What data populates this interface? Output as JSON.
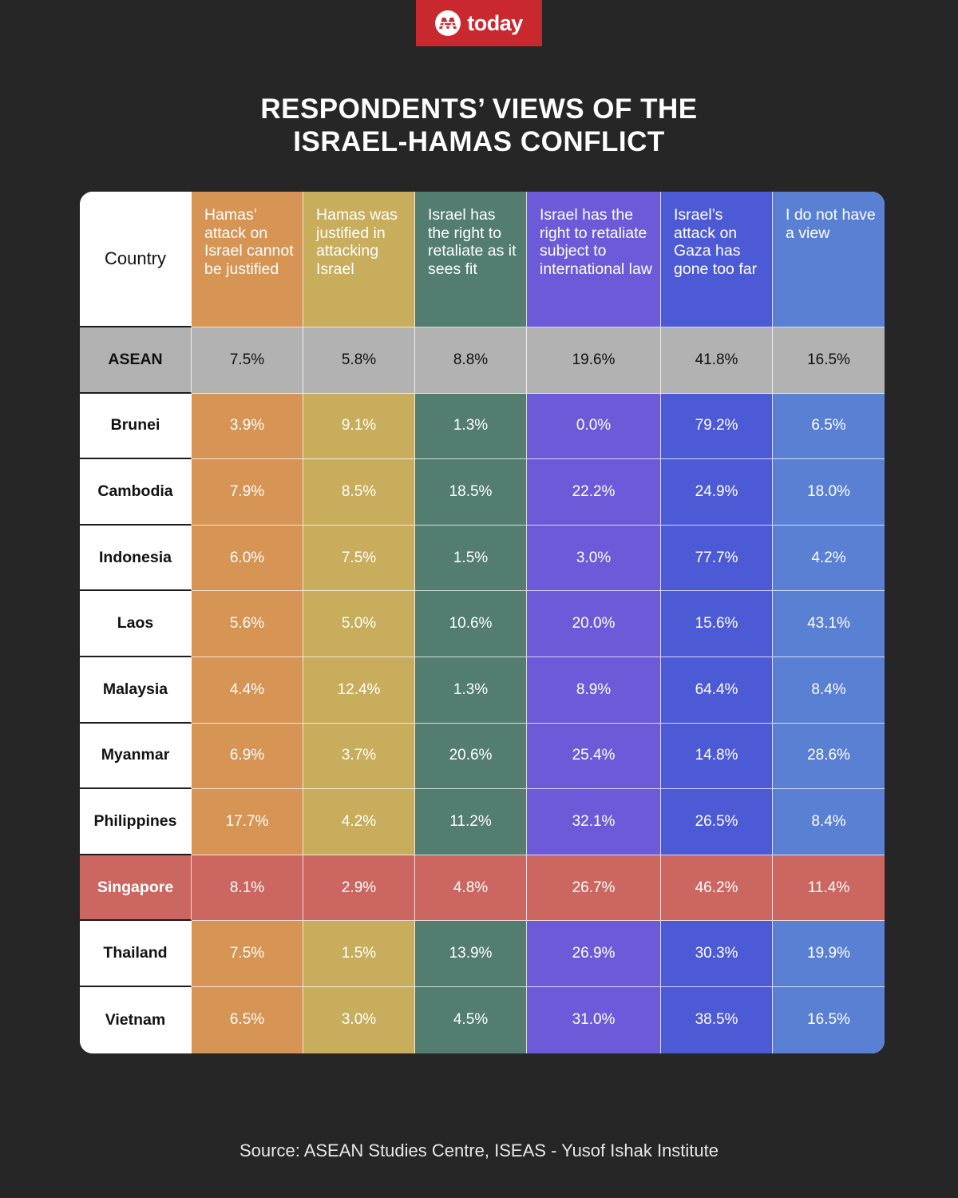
{
  "brand": {
    "logo_text": "today",
    "logo_color": "#c8282e"
  },
  "title_lines": [
    "RESPONDENTS’ VIEWS OF THE",
    "ISRAEL-HAMAS CONFLICT"
  ],
  "source": "Source: ASEAN Studies Centre, ISEAS - Yusof Ishak Institute",
  "chart_data": {
    "type": "table",
    "title": "RESPONDENTS’ VIEWS OF THE ISRAEL-HAMAS CONFLICT",
    "row_header_label": "Country",
    "columns": [
      {
        "label": "Hamas’ attack on Israel cannot be justified",
        "color": "#d69455"
      },
      {
        "label": "Hamas was justified in attacking Israel",
        "color": "#c8ad5d"
      },
      {
        "label": "Israel has the right to retaliate as it sees fit",
        "color": "#547d71"
      },
      {
        "label": "Israel has the right to retaliate subject to international law",
        "color": "#6d5ad8"
      },
      {
        "label": "Israel’s attack on Gaza has gone too far",
        "color": "#4d5ad6"
      },
      {
        "label": "I do not have a view",
        "color": "#5a80d4"
      }
    ],
    "rows": [
      {
        "country": "ASEAN",
        "highlight": "aggregate",
        "values": [
          "7.5%",
          "5.8%",
          "8.8%",
          "19.6%",
          "41.8%",
          "16.5%"
        ]
      },
      {
        "country": "Brunei",
        "values": [
          "3.9%",
          "9.1%",
          "1.3%",
          "0.0%",
          "79.2%",
          "6.5%"
        ]
      },
      {
        "country": "Cambodia",
        "values": [
          "7.9%",
          "8.5%",
          "18.5%",
          "22.2%",
          "24.9%",
          "18.0%"
        ]
      },
      {
        "country": "Indonesia",
        "values": [
          "6.0%",
          "7.5%",
          "1.5%",
          "3.0%",
          "77.7%",
          "4.2%"
        ]
      },
      {
        "country": "Laos",
        "values": [
          "5.6%",
          "5.0%",
          "10.6%",
          "20.0%",
          "15.6%",
          "43.1%"
        ]
      },
      {
        "country": "Malaysia",
        "values": [
          "4.4%",
          "12.4%",
          "1.3%",
          "8.9%",
          "64.4%",
          "8.4%"
        ]
      },
      {
        "country": "Myanmar",
        "values": [
          "6.9%",
          "3.7%",
          "20.6%",
          "25.4%",
          "14.8%",
          "28.6%"
        ]
      },
      {
        "country": "Philippines",
        "values": [
          "17.7%",
          "4.2%",
          "11.2%",
          "32.1%",
          "26.5%",
          "8.4%"
        ]
      },
      {
        "country": "Singapore",
        "highlight": "featured",
        "values": [
          "8.1%",
          "2.9%",
          "4.8%",
          "26.7%",
          "46.2%",
          "11.4%"
        ]
      },
      {
        "country": "Thailand",
        "values": [
          "7.5%",
          "1.5%",
          "13.9%",
          "26.9%",
          "30.3%",
          "19.9%"
        ]
      },
      {
        "country": "Vietnam",
        "values": [
          "6.5%",
          "3.0%",
          "4.5%",
          "31.0%",
          "38.5%",
          "16.5%"
        ]
      }
    ],
    "highlight_colors": {
      "aggregate": "#b2b2b2",
      "featured": "#cb6760"
    }
  }
}
